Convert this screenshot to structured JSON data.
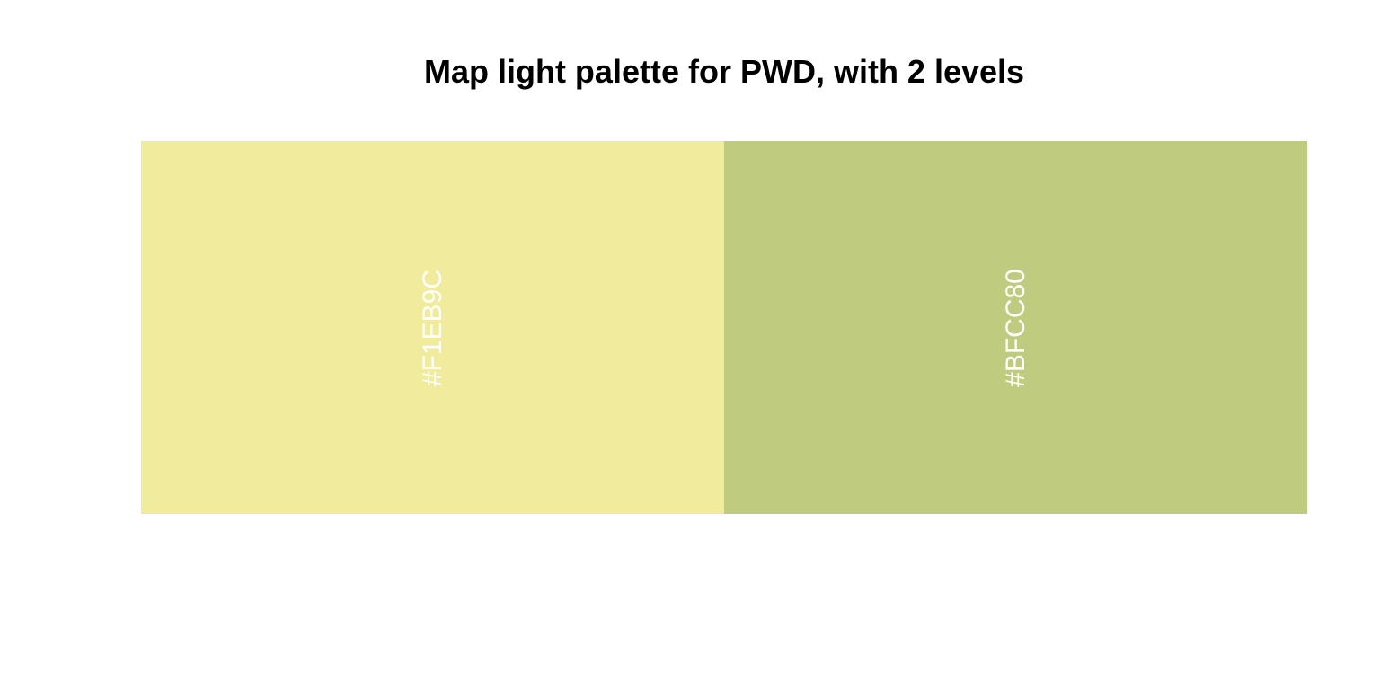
{
  "chart_data": {
    "type": "bar",
    "title": "Map light palette for PWD, with 2 levels",
    "categories": [
      "#F1EB9C",
      "#BFCC80"
    ],
    "values": [
      1,
      1
    ],
    "colors": [
      "#F1EB9C",
      "#BFCC80"
    ],
    "label_color": "#FFFFFF",
    "label_orientation": "vertical",
    "grid": false,
    "legend": "none"
  }
}
